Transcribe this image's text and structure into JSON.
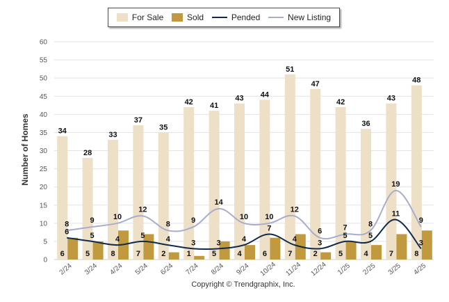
{
  "legend": {
    "for_sale": "For Sale",
    "sold": "Sold",
    "pended": "Pended",
    "new_listing": "New Listing"
  },
  "copyright": "Copyright © Trendgraphix, Inc.",
  "colors": {
    "for_sale": "#ede0c6",
    "sold": "#c19a40",
    "pended": "#0f2a4a",
    "new_listing": "#a7adcb",
    "grid": "#e3e3e3"
  },
  "chart_data": {
    "type": "bar",
    "ylabel": "Number of Homes",
    "ylim": [
      0,
      60
    ],
    "yticks": [
      0,
      5,
      10,
      15,
      20,
      25,
      30,
      35,
      40,
      45,
      50,
      55,
      60
    ],
    "grid": true,
    "legend_position": "top",
    "categories": [
      "2/24",
      "3/24",
      "4/24",
      "5/24",
      "6/24",
      "7/24",
      "8/24",
      "9/24",
      "10/24",
      "11/24",
      "12/24",
      "1/25",
      "2/25",
      "3/25",
      "4/25"
    ],
    "series": [
      {
        "name": "For Sale",
        "kind": "bar",
        "values": [
          34,
          28,
          33,
          37,
          35,
          42,
          41,
          43,
          44,
          51,
          47,
          42,
          36,
          43,
          48
        ]
      },
      {
        "name": "Sold",
        "kind": "bar",
        "values": [
          6,
          5,
          8,
          7,
          2,
          1,
          5,
          4,
          6,
          7,
          2,
          5,
          4,
          7,
          8
        ]
      },
      {
        "name": "Pended",
        "kind": "line",
        "values": [
          6,
          5,
          4,
          5,
          4,
          3,
          3,
          4,
          7,
          4,
          3,
          5,
          5,
          11,
          3
        ]
      },
      {
        "name": "New Listing",
        "kind": "line",
        "values": [
          8,
          9,
          10,
          12,
          8,
          9,
          14,
          10,
          10,
          12,
          6,
          7,
          8,
          19,
          9
        ]
      }
    ]
  }
}
